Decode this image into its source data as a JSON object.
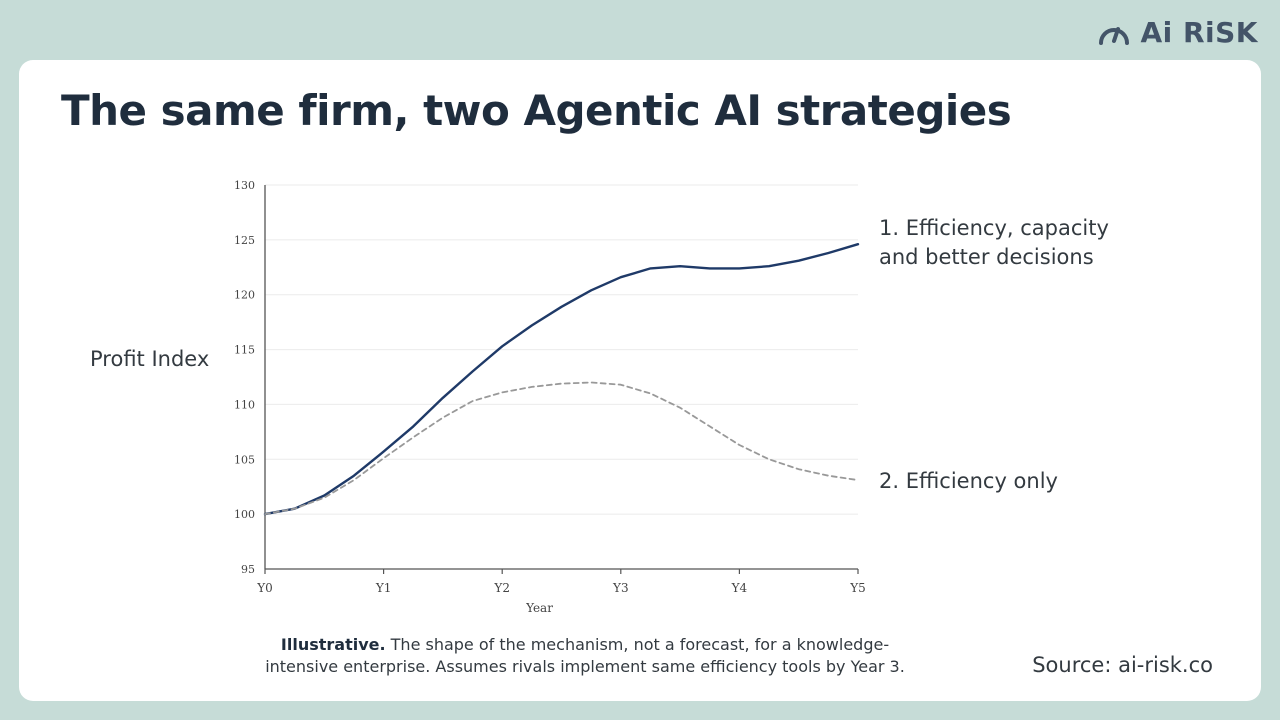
{
  "brand": {
    "name": "Ai RiSK"
  },
  "slide": {
    "title": "The same firm, two Agentic AI strategies",
    "note_bold": "Illustrative.",
    "note_text": " The shape of the mechanism, not a forecast, for a knowledge-intensive enterprise. Assumes rivals implement same efficiency tools by Year 3.",
    "source": "Source: ai-risk.co"
  },
  "chart_data": {
    "type": "line",
    "xlabel": "Year",
    "ylabel": "Profit Index",
    "x_ticks": [
      "Y0",
      "Y1",
      "Y2",
      "Y3",
      "Y4",
      "Y5"
    ],
    "y_ticks": [
      95,
      100,
      105,
      110,
      115,
      120,
      125,
      130
    ],
    "xlim": [
      0,
      5
    ],
    "ylim": [
      95,
      130
    ],
    "grid": "horizontal",
    "series": [
      {
        "name": "1. Efficiency, capacity and better decisions",
        "style": "solid",
        "color": "#1f3a68",
        "x": [
          0,
          0.25,
          0.5,
          0.75,
          1,
          1.25,
          1.5,
          1.75,
          2,
          2.25,
          2.5,
          2.75,
          3,
          3.25,
          3.5,
          3.75,
          4,
          4.25,
          4.5,
          4.75,
          5
        ],
        "values": [
          100,
          100.5,
          101.7,
          103.5,
          105.7,
          108,
          110.6,
          113,
          115.3,
          117.2,
          118.9,
          120.4,
          121.6,
          122.4,
          122.6,
          122.4,
          122.4,
          122.6,
          123.1,
          123.8,
          124.6
        ]
      },
      {
        "name": "2. Efficiency only",
        "style": "dashed",
        "color": "#999999",
        "x": [
          0,
          0.25,
          0.5,
          0.75,
          1,
          1.25,
          1.5,
          1.75,
          2,
          2.25,
          2.5,
          2.75,
          3,
          3.25,
          3.5,
          3.75,
          4,
          4.25,
          4.5,
          4.75,
          5
        ],
        "values": [
          100,
          100.5,
          101.5,
          103.1,
          105.1,
          107,
          108.8,
          110.3,
          111.1,
          111.6,
          111.9,
          112,
          111.8,
          111,
          109.7,
          108,
          106.3,
          105,
          104.1,
          103.5,
          103.1
        ]
      }
    ]
  }
}
